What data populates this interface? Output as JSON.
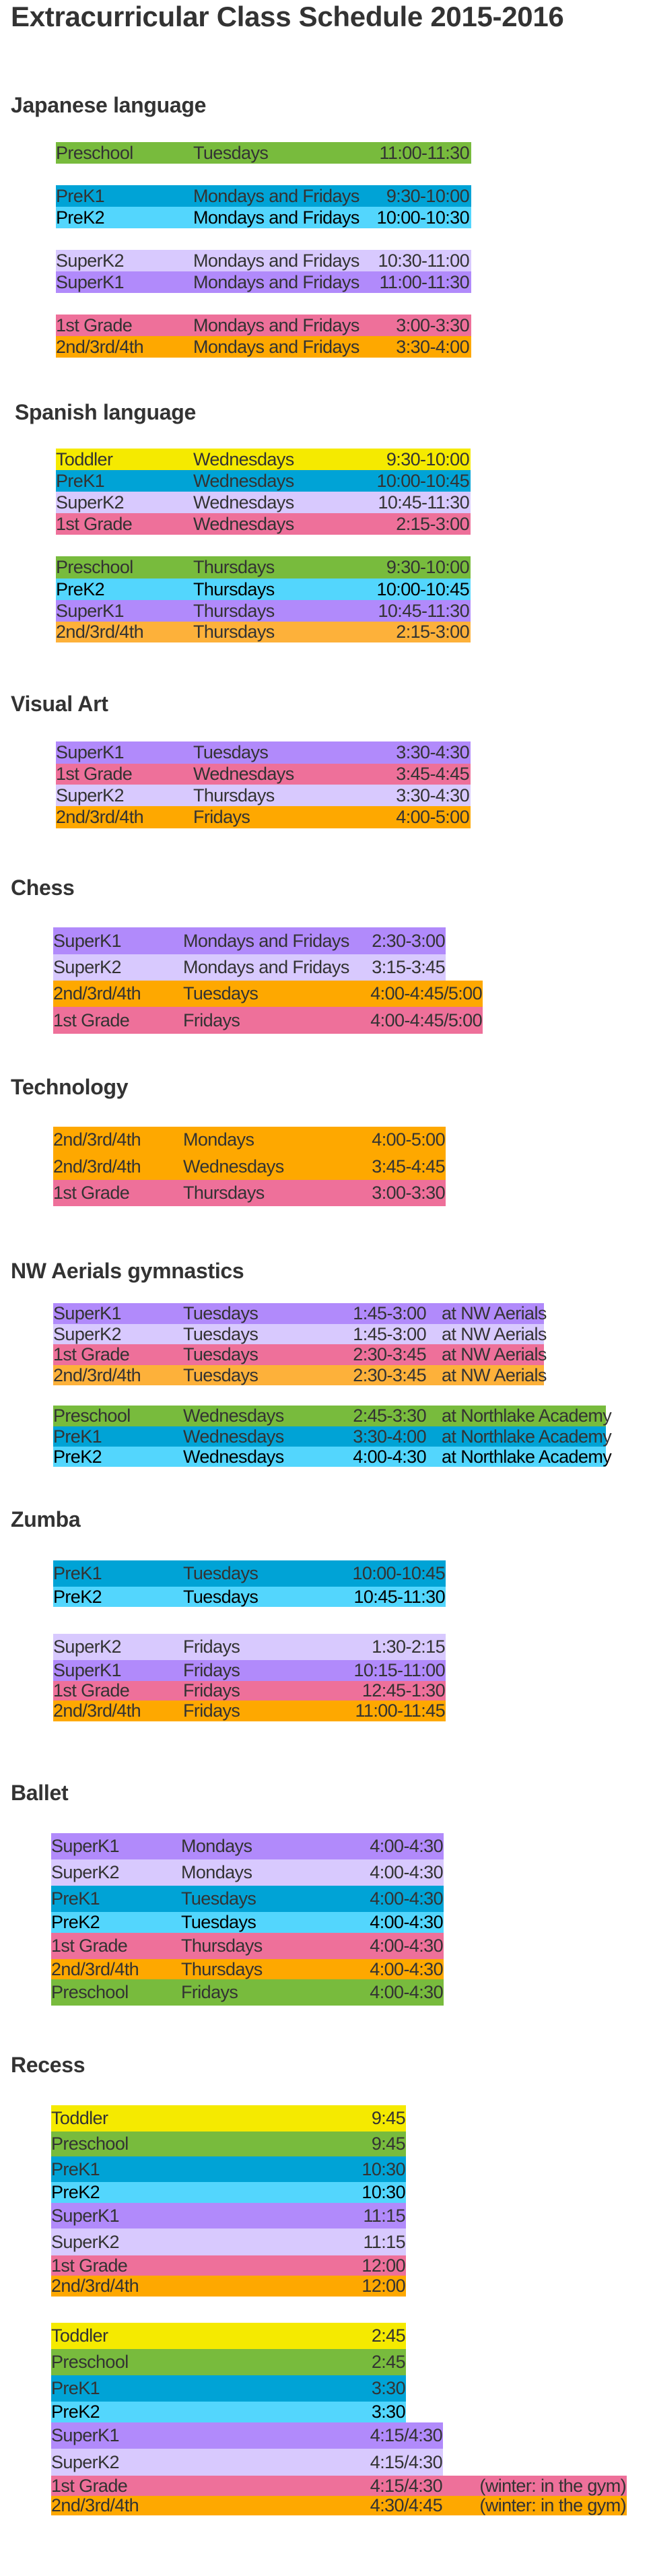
{
  "title": "Extracurricular Class Schedule 2015-2016",
  "colors": {
    "green": "#78BB3D",
    "blue": "#00A3D6",
    "cyan": "#53D6FD",
    "lavender": "#D8C9FE",
    "purple": "#B18AFB",
    "pink": "#EE709A",
    "orange": "#FEA800",
    "light-orange": "#FDB13A",
    "yellow": "#F5EA00"
  },
  "sections": [
    {
      "title": "Japanese language",
      "rows": [
        {
          "class": "Preschool",
          "day": "Tuesdays",
          "time": "11:00-11:30",
          "color": "green"
        },
        {
          "class": "PreK1",
          "day": "Mondays and Fridays",
          "time": "9:30-10:00",
          "color": "blue"
        },
        {
          "class": "PreK2",
          "day": "Mondays and Fridays",
          "time": "10:00-10:30",
          "color": "cyan"
        },
        {
          "class": "SuperK2",
          "day": "Mondays and Fridays",
          "time": "10:30-11:00",
          "color": "lavender"
        },
        {
          "class": "SuperK1",
          "day": "Mondays and Fridays",
          "time": "11:00-11:30",
          "color": "purple"
        },
        {
          "class": "1st Grade",
          "day": "Mondays and Fridays",
          "time": "3:00-3:30",
          "color": "pink"
        },
        {
          "class": "2nd/3rd/4th",
          "day": "Mondays and Fridays",
          "time": "3:30-4:00",
          "color": "orange"
        }
      ]
    },
    {
      "title": "Spanish language",
      "rows": [
        {
          "class": "Toddler",
          "day": "Wednesdays",
          "time": "9:30-10:00",
          "color": "yellow"
        },
        {
          "class": "PreK1",
          "day": "Wednesdays",
          "time": "10:00-10:45",
          "color": "blue"
        },
        {
          "class": "SuperK2",
          "day": "Wednesdays",
          "time": "10:45-11:30",
          "color": "lavender"
        },
        {
          "class": "1st Grade",
          "day": "Wednesdays",
          "time": "2:15-3:00",
          "color": "pink"
        },
        {
          "class": "Preschool",
          "day": "Thursdays",
          "time": "9:30-10:00",
          "color": "green"
        },
        {
          "class": "PreK2",
          "day": "Thursdays",
          "time": "10:00-10:45",
          "color": "cyan"
        },
        {
          "class": "SuperK1",
          "day": "Thursdays",
          "time": "10:45-11:30",
          "color": "purple"
        },
        {
          "class": "2nd/3rd/4th",
          "day": "Thursdays",
          "time": "2:15-3:00",
          "color": "light-orange"
        }
      ]
    },
    {
      "title": "Visual Art",
      "rows": [
        {
          "class": "SuperK1",
          "day": "Tuesdays",
          "time": "3:30-4:30",
          "color": "purple"
        },
        {
          "class": "1st Grade",
          "day": "Wednesdays",
          "time": "3:45-4:45",
          "color": "pink"
        },
        {
          "class": "SuperK2",
          "day": "Thursdays",
          "time": "3:30-4:30",
          "color": "lavender"
        },
        {
          "class": "2nd/3rd/4th",
          "day": "Fridays",
          "time": "4:00-5:00",
          "color": "orange"
        }
      ]
    },
    {
      "title": "Chess",
      "rows": [
        {
          "class": "SuperK1",
          "day": "Mondays and Fridays",
          "time": "2:30-3:00",
          "color": "purple"
        },
        {
          "class": "SuperK2",
          "day": "Mondays and Fridays",
          "time": "3:15-3:45",
          "color": "lavender"
        },
        {
          "class": "2nd/3rd/4th",
          "day": "Tuesdays",
          "time": "4:00-4:45/5:00",
          "color": "orange"
        },
        {
          "class": "1st Grade",
          "day": "Fridays",
          "time": "4:00-4:45/5:00",
          "color": "pink"
        }
      ]
    },
    {
      "title": "Technology",
      "rows": [
        {
          "class": "2nd/3rd/4th",
          "day": "Mondays",
          "time": "4:00-5:00",
          "color": "orange"
        },
        {
          "class": "2nd/3rd/4th",
          "day": "Wednesdays",
          "time": "3:45-4:45",
          "color": "orange"
        },
        {
          "class": "1st Grade",
          "day": "Thursdays",
          "time": "3:00-3:30",
          "color": "pink"
        }
      ]
    },
    {
      "title": "NW Aerials gymnastics",
      "rows": [
        {
          "class": "SuperK1",
          "day": "Tuesdays",
          "time": "1:45-3:00",
          "location": "at NW Aerials",
          "color": "purple"
        },
        {
          "class": "SuperK2",
          "day": "Tuesdays",
          "time": "1:45-3:00",
          "location": "at NW Aerials",
          "color": "lavender"
        },
        {
          "class": "1st Grade",
          "day": "Tuesdays",
          "time": "2:30-3:45",
          "location": "at NW Aerials",
          "color": "pink"
        },
        {
          "class": "2nd/3rd/4th",
          "day": "Tuesdays",
          "time": "2:30-3:45",
          "location": "at NW Aerials",
          "color": "light-orange"
        },
        {
          "class": "Preschool",
          "day": "Wednesdays",
          "time": "2:45-3:30",
          "location": "at Northlake Academy",
          "color": "green"
        },
        {
          "class": "PreK1",
          "day": "Wednesdays",
          "time": "3:30-4:00",
          "location": "at Northlake Academy",
          "color": "blue"
        },
        {
          "class": "PreK2",
          "day": "Wednesdays",
          "time": "4:00-4:30",
          "location": "at Northlake Academy",
          "color": "cyan"
        }
      ]
    },
    {
      "title": "Zumba",
      "rows": [
        {
          "class": "PreK1",
          "day": "Tuesdays",
          "time": "10:00-10:45",
          "color": "blue"
        },
        {
          "class": "PreK2",
          "day": "Tuesdays",
          "time": "10:45-11:30",
          "color": "cyan"
        },
        {
          "class": "SuperK2",
          "day": "Fridays",
          "time": "1:30-2:15",
          "color": "lavender"
        },
        {
          "class": "SuperK1",
          "day": "Fridays",
          "time": "10:15-11:00",
          "color": "purple"
        },
        {
          "class": "1st Grade",
          "day": "Fridays",
          "time": "12:45-1:30",
          "color": "pink"
        },
        {
          "class": "2nd/3rd/4th",
          "day": "Fridays",
          "time": "11:00-11:45",
          "color": "orange"
        }
      ]
    },
    {
      "title": "Ballet",
      "rows": [
        {
          "class": "SuperK1",
          "day": "Mondays",
          "time": "4:00-4:30",
          "color": "purple"
        },
        {
          "class": "SuperK2",
          "day": "Mondays",
          "time": "4:00-4:30",
          "color": "lavender"
        },
        {
          "class": "PreK1",
          "day": "Tuesdays",
          "time": "4:00-4:30",
          "color": "blue"
        },
        {
          "class": "PreK2",
          "day": "Tuesdays",
          "time": "4:00-4:30",
          "color": "cyan"
        },
        {
          "class": "1st Grade",
          "day": "Thursdays",
          "time": "4:00-4:30",
          "color": "pink"
        },
        {
          "class": "2nd/3rd/4th",
          "day": "Thursdays",
          "time": "4:00-4:30",
          "color": "orange"
        },
        {
          "class": "Preschool",
          "day": "Fridays",
          "time": "4:00-4:30",
          "color": "green"
        }
      ]
    },
    {
      "title": "Recess",
      "rows": [
        {
          "class": "Toddler",
          "time": "9:45",
          "color": "yellow"
        },
        {
          "class": "Preschool",
          "time": "9:45",
          "color": "green"
        },
        {
          "class": "PreK1",
          "time": "10:30",
          "color": "blue"
        },
        {
          "class": "PreK2",
          "time": "10:30",
          "color": "cyan"
        },
        {
          "class": "SuperK1",
          "time": "11:15",
          "color": "purple"
        },
        {
          "class": "SuperK2",
          "time": "11:15",
          "color": "lavender"
        },
        {
          "class": "1st Grade",
          "time": "12:00",
          "color": "pink"
        },
        {
          "class": "2nd/3rd/4th",
          "time": "12:00",
          "color": "orange"
        },
        {
          "class": "Toddler",
          "time": "2:45",
          "color": "yellow"
        },
        {
          "class": "Preschool",
          "time": "2:45",
          "color": "green"
        },
        {
          "class": "PreK1",
          "time": "3:30",
          "color": "blue"
        },
        {
          "class": "PreK2",
          "time": "3:30",
          "color": "cyan"
        },
        {
          "class": "SuperK1",
          "time": "4:15/4:30",
          "color": "purple"
        },
        {
          "class": "SuperK2",
          "time": "4:15/4:30",
          "color": "lavender"
        },
        {
          "class": "1st Grade",
          "time": "4:15/4:30",
          "note": "(winter: in the gym)",
          "color": "pink"
        },
        {
          "class": "2nd/3rd/4th",
          "time": "4:30/4:45",
          "note": "(winter: in the gym)",
          "color": "orange"
        }
      ]
    }
  ]
}
